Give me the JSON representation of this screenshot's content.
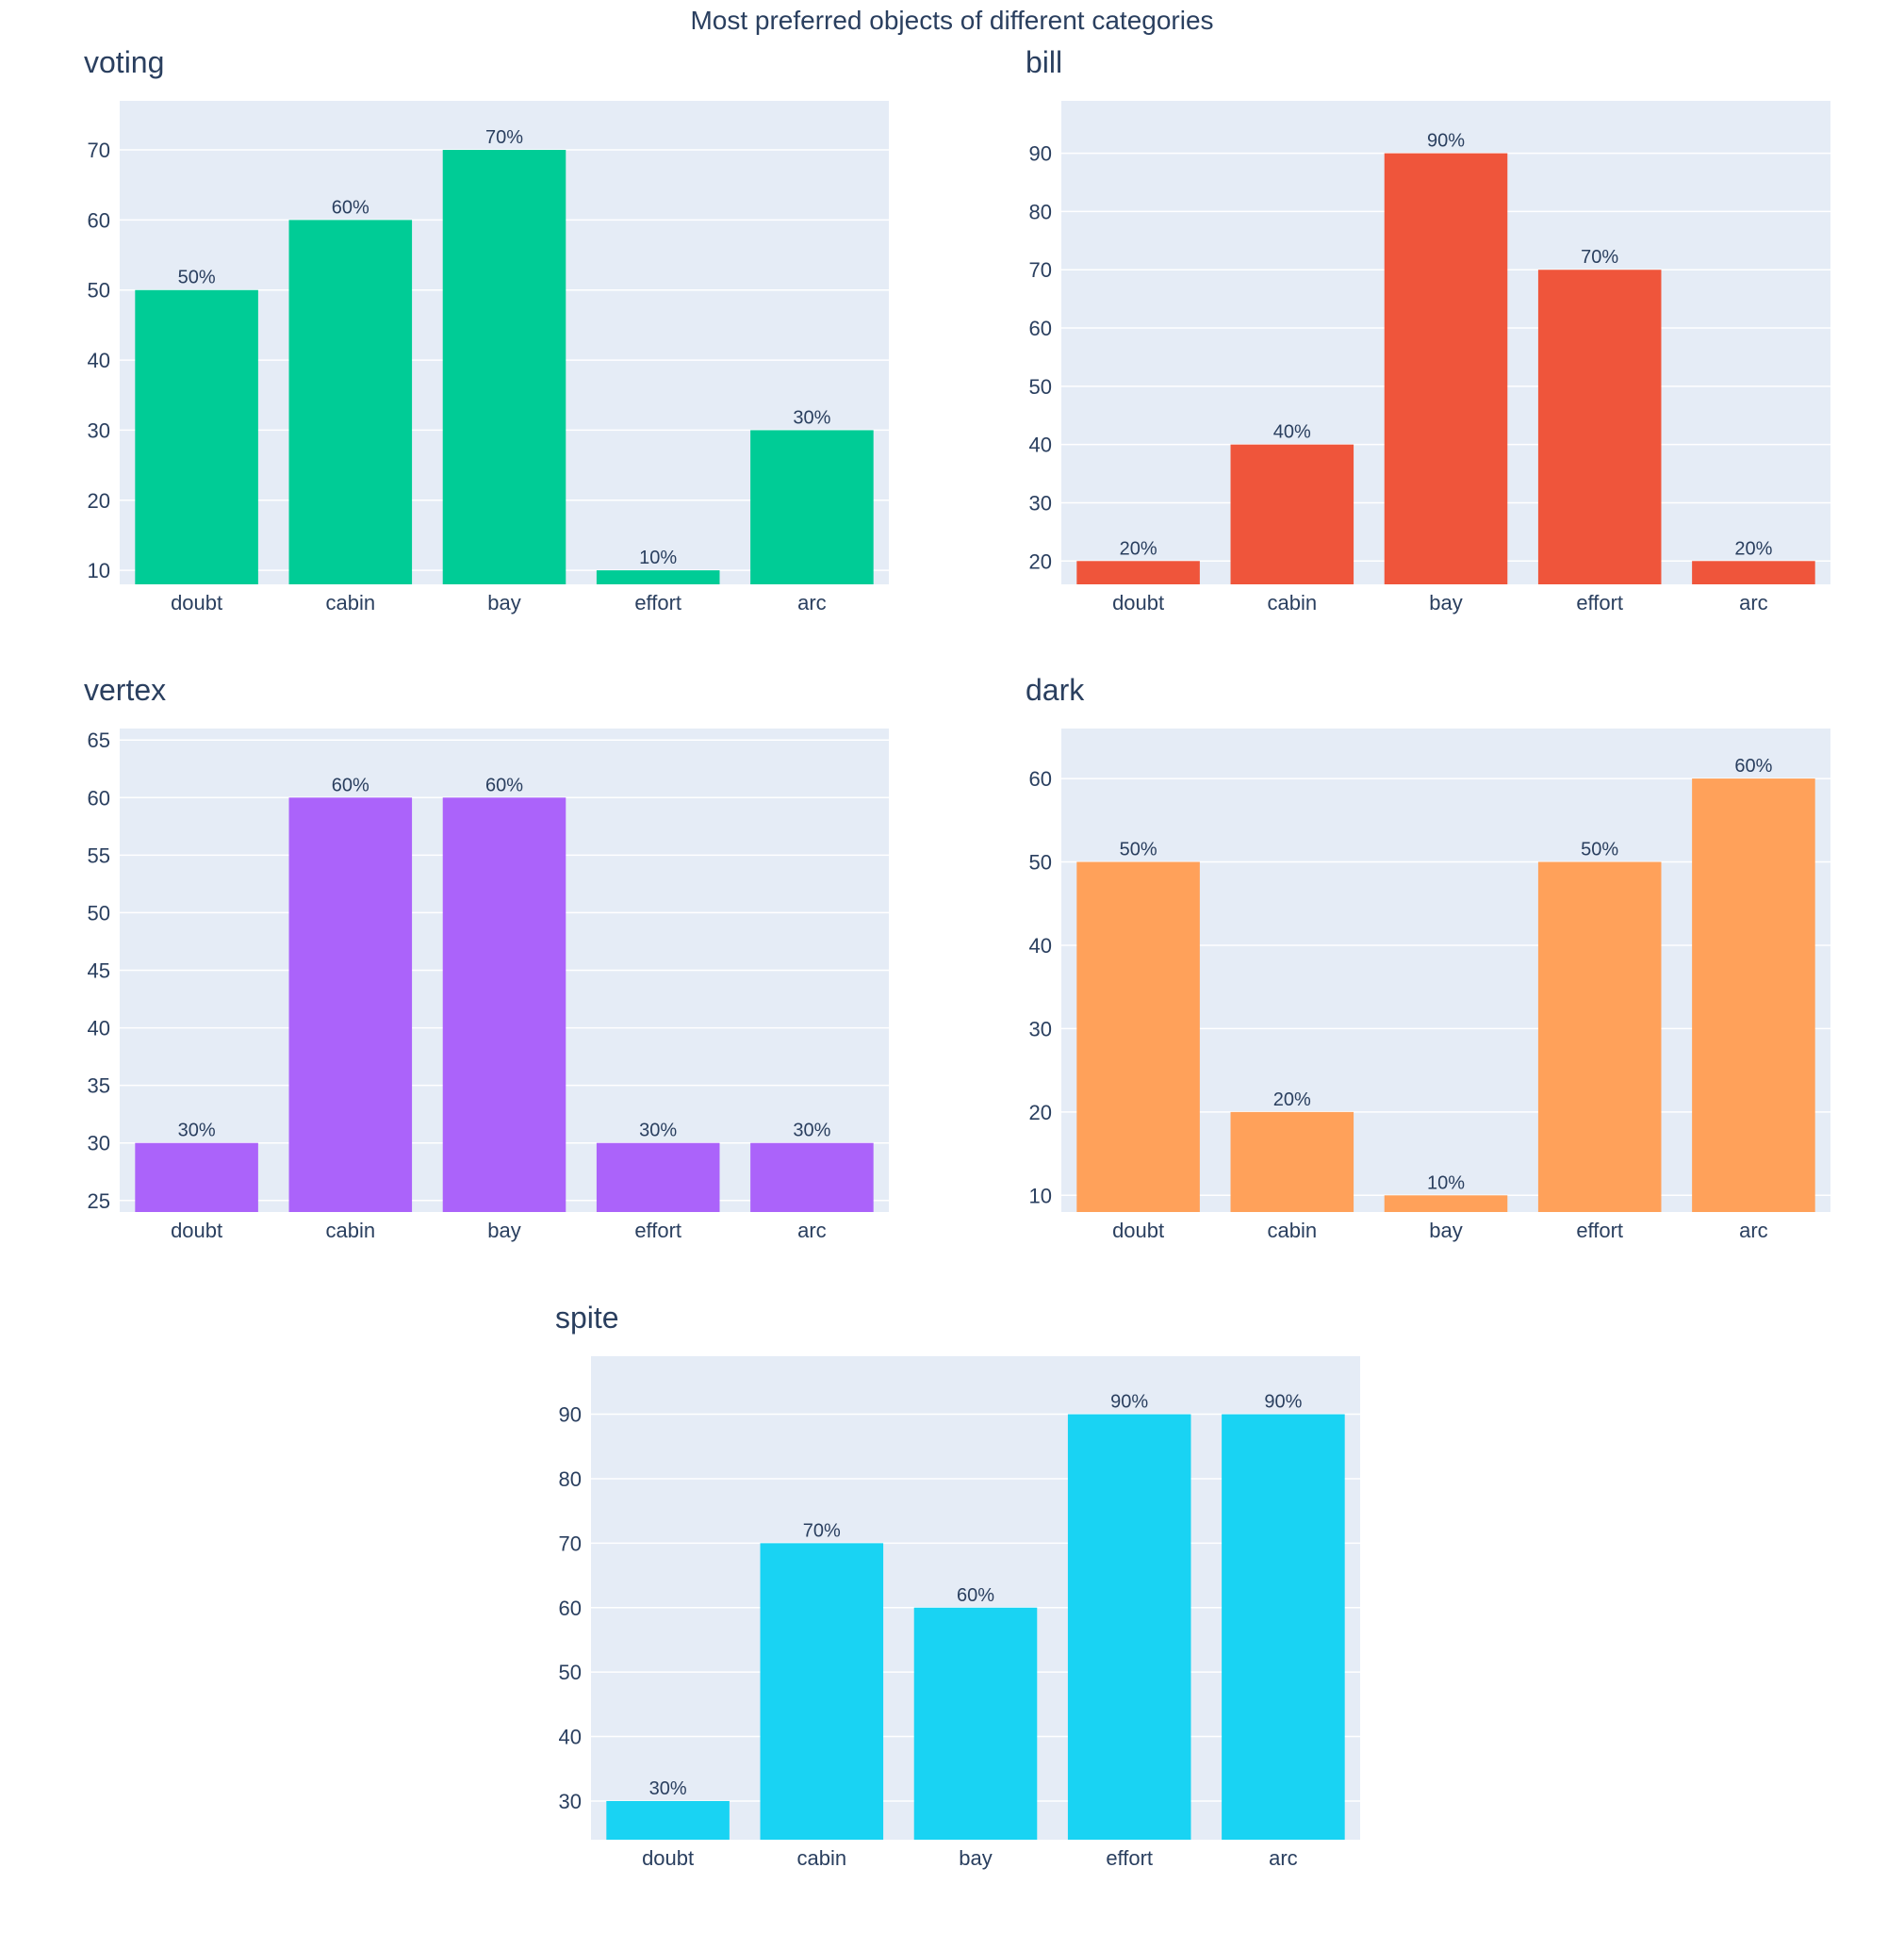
{
  "figure": {
    "title": "Most preferred objects of different categories"
  },
  "chart_data": [
    {
      "type": "bar",
      "title": "voting",
      "categories": [
        "doubt",
        "cabin",
        "bay",
        "effort",
        "arc"
      ],
      "values": [
        50,
        60,
        70,
        10,
        30
      ],
      "labels": [
        "50%",
        "60%",
        "70%",
        "10%",
        "30%"
      ],
      "yticks": [
        10,
        20,
        30,
        40,
        50,
        60,
        70
      ],
      "ylim": [
        8,
        77
      ],
      "color": "#00cc96",
      "grid": true,
      "xlabel": "",
      "ylabel": ""
    },
    {
      "type": "bar",
      "title": "bill",
      "categories": [
        "doubt",
        "cabin",
        "bay",
        "effort",
        "arc"
      ],
      "values": [
        20,
        40,
        90,
        70,
        20
      ],
      "labels": [
        "20%",
        "40%",
        "90%",
        "70%",
        "20%"
      ],
      "yticks": [
        20,
        30,
        40,
        50,
        60,
        70,
        80,
        90
      ],
      "ylim": [
        16,
        99
      ],
      "color": "#ef553b",
      "grid": true,
      "xlabel": "",
      "ylabel": ""
    },
    {
      "type": "bar",
      "title": "vertex",
      "categories": [
        "doubt",
        "cabin",
        "bay",
        "effort",
        "arc"
      ],
      "values": [
        30,
        60,
        60,
        30,
        30
      ],
      "labels": [
        "30%",
        "60%",
        "60%",
        "30%",
        "30%"
      ],
      "yticks": [
        25,
        30,
        35,
        40,
        45,
        50,
        55,
        60,
        65
      ],
      "ylim": [
        24,
        66
      ],
      "color": "#ab63fa",
      "grid": true,
      "xlabel": "",
      "ylabel": ""
    },
    {
      "type": "bar",
      "title": "dark",
      "categories": [
        "doubt",
        "cabin",
        "bay",
        "effort",
        "arc"
      ],
      "values": [
        50,
        20,
        10,
        50,
        60
      ],
      "labels": [
        "50%",
        "20%",
        "10%",
        "50%",
        "60%"
      ],
      "yticks": [
        10,
        20,
        30,
        40,
        50,
        60
      ],
      "ylim": [
        8,
        66
      ],
      "color": "#ffa15a",
      "grid": true,
      "xlabel": "",
      "ylabel": ""
    },
    {
      "type": "bar",
      "title": "spite",
      "categories": [
        "doubt",
        "cabin",
        "bay",
        "effort",
        "arc"
      ],
      "values": [
        30,
        70,
        60,
        90,
        90
      ],
      "labels": [
        "30%",
        "70%",
        "60%",
        "90%",
        "90%"
      ],
      "yticks": [
        30,
        40,
        50,
        60,
        70,
        80,
        90
      ],
      "ylim": [
        24,
        99
      ],
      "color": "#19d3f3",
      "grid": true,
      "xlabel": "",
      "ylabel": ""
    }
  ]
}
